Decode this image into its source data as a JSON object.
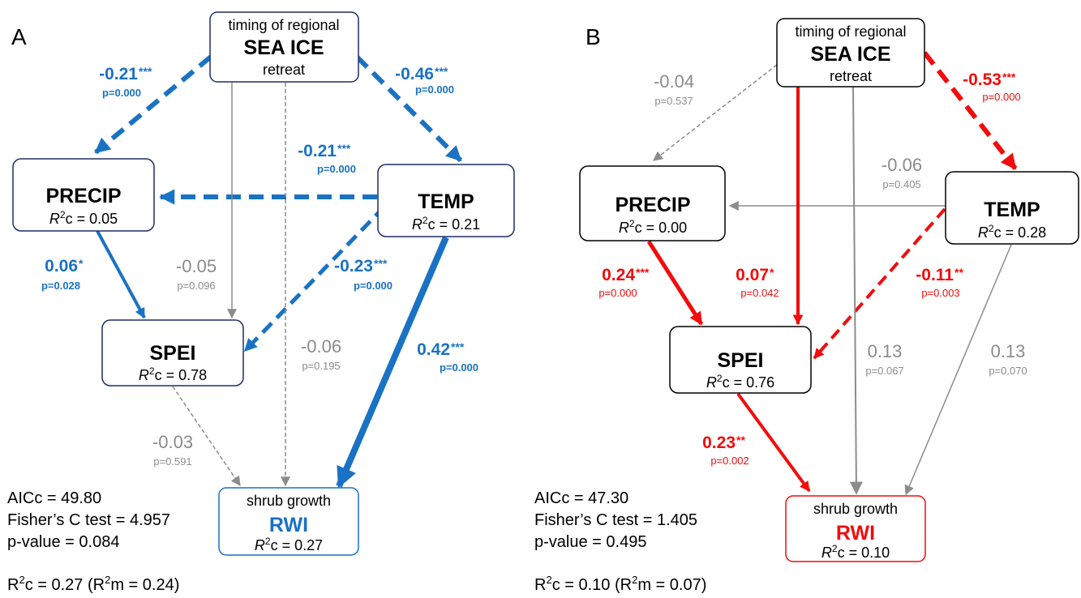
{
  "colors": {
    "blue": "#1a72c4",
    "red": "#f20c0c",
    "gray": "#8c8c8c",
    "node_border_a": "#1e2f66"
  },
  "panels": [
    {
      "letter": "A",
      "accent": "#1a72c4",
      "nodes": {
        "seaice": {
          "line1": "timing of regional",
          "title": "SEA ICE",
          "line3": "retreat"
        },
        "precip": {
          "title": "PRECIP",
          "r2_label": "c = 0.05"
        },
        "temp": {
          "title": "TEMP",
          "r2_label": "c = 0.21"
        },
        "spei": {
          "title": "SPEI",
          "r2_label": "c = 0.78"
        },
        "rwi": {
          "line1": "shrub growth",
          "title": "RWI",
          "r2_label": "c = 0.27"
        }
      },
      "paths": [
        {
          "id": "seaice-precip",
          "coef": "-0.21",
          "stars": "***",
          "p": "p=0.000",
          "sig": true
        },
        {
          "id": "seaice-temp",
          "coef": "-0.46",
          "stars": "***",
          "p": "p=0.000",
          "sig": true
        },
        {
          "id": "temp-precip",
          "coef": "-0.21",
          "stars": "***",
          "p": "p=0.000",
          "sig": true
        },
        {
          "id": "precip-spei",
          "coef": "0.06",
          "stars": "*",
          "p": "p=0.028",
          "sig": true
        },
        {
          "id": "seaice-spei",
          "coef": "-0.05",
          "stars": "",
          "p": "p=0.096",
          "sig": false
        },
        {
          "id": "temp-spei",
          "coef": "-0.23",
          "stars": "***",
          "p": "p=0.000",
          "sig": true
        },
        {
          "id": "seaice-rwi",
          "coef": "-0.06",
          "stars": "",
          "p": "p=0.195",
          "sig": false
        },
        {
          "id": "temp-rwi",
          "coef": "0.42",
          "stars": "***",
          "p": "p=0.000",
          "sig": true
        },
        {
          "id": "spei-rwi",
          "coef": "-0.03",
          "stars": "",
          "p": "p=0.591",
          "sig": false
        }
      ],
      "fit": {
        "aicc": "AICc = 49.80",
        "fisher": "Fisher’s C test = 4.957",
        "pvalue": "p-value = 0.084",
        "r2c": "c = 0.27 (R",
        "r2m": "m = 0.24)"
      }
    },
    {
      "letter": "B",
      "accent": "#f20c0c",
      "nodes": {
        "seaice": {
          "line1": "timing of regional",
          "title": "SEA ICE",
          "line3": "retreat"
        },
        "precip": {
          "title": "PRECIP",
          "r2_label": "c = 0.00"
        },
        "temp": {
          "title": "TEMP",
          "r2_label": "c = 0.28"
        },
        "spei": {
          "title": "SPEI",
          "r2_label": "c = 0.76"
        },
        "rwi": {
          "line1": "shrub growth",
          "title": "RWI",
          "r2_label": "c = 0.10"
        }
      },
      "paths": [
        {
          "id": "seaice-precip",
          "coef": "-0.04",
          "stars": "",
          "p": "p=0.537",
          "sig": false
        },
        {
          "id": "seaice-temp",
          "coef": "-0.53",
          "stars": "***",
          "p": "p=0.000",
          "sig": true
        },
        {
          "id": "temp-precip",
          "coef": "-0.06",
          "stars": "",
          "p": "p=0.405",
          "sig": false
        },
        {
          "id": "precip-spei",
          "coef": "0.24",
          "stars": "***",
          "p": "p=0.000",
          "sig": true
        },
        {
          "id": "seaice-spei",
          "coef": "0.07",
          "stars": "*",
          "p": "p=0.042",
          "sig": true
        },
        {
          "id": "temp-spei",
          "coef": "-0.11",
          "stars": "**",
          "p": "p=0.003",
          "sig": true
        },
        {
          "id": "seaice-rwi",
          "coef": "0.13",
          "stars": "",
          "p": "p=0.067",
          "sig": false
        },
        {
          "id": "temp-rwi",
          "coef": "0.13",
          "stars": "",
          "p": "p=0.070",
          "sig": false
        },
        {
          "id": "spei-rwi",
          "coef": "0.23",
          "stars": "**",
          "p": "p=0.002",
          "sig": true
        }
      ],
      "fit": {
        "aicc": "AICc = 47.30",
        "fisher": "Fisher’s C test = 1.405",
        "pvalue": "p-value = 0.495",
        "r2c": "c = 0.10 (R",
        "r2m": "m = 0.07)"
      }
    }
  ]
}
